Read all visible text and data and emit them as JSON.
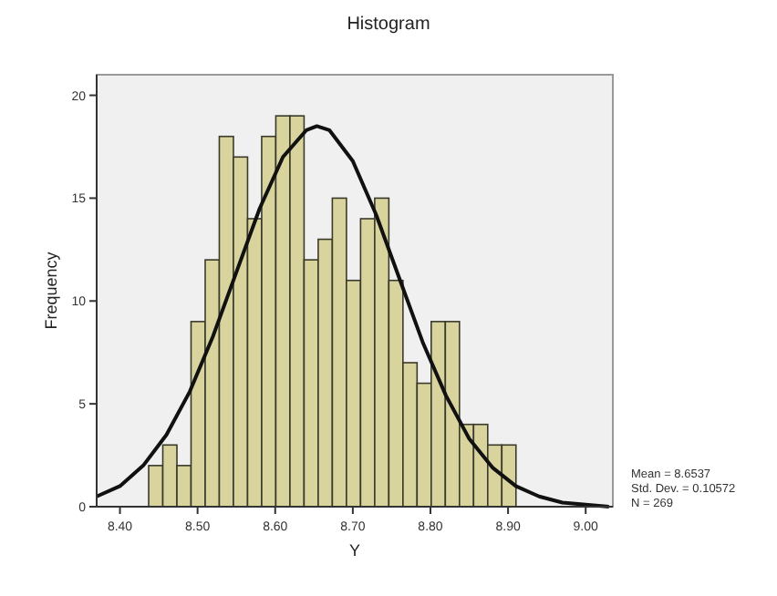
{
  "chart_data": {
    "type": "histogram",
    "title": "Histogram",
    "xlabel": "Y",
    "ylabel": "Frequency",
    "xlim": [
      8.37,
      9.035
    ],
    "xticks": [
      {
        "value": 8.4,
        "label": "8.40"
      },
      {
        "value": 8.5,
        "label": "8.50"
      },
      {
        "value": 8.6,
        "label": "8.60"
      },
      {
        "value": 8.7,
        "label": "8.70"
      },
      {
        "value": 8.8,
        "label": "8.80"
      },
      {
        "value": 8.9,
        "label": "8.90"
      },
      {
        "value": 9.0,
        "label": "9.00"
      }
    ],
    "ylim": [
      0,
      21
    ],
    "yticks": [
      0,
      5,
      10,
      15,
      20
    ],
    "series": [
      {
        "color": "#d9d49e",
        "bins": [
          8.437,
          8.4552,
          8.4734,
          8.4916,
          8.5098,
          8.528,
          8.5462,
          8.5644,
          8.5826,
          8.6008,
          8.619,
          8.6372,
          8.6554,
          8.6736,
          8.6918,
          8.71,
          8.7282,
          8.7464,
          8.7646,
          8.7828,
          8.801,
          8.8192,
          8.8374,
          8.8556,
          8.8738,
          8.892,
          8.9102
        ],
        "values": [
          2,
          3,
          2,
          9,
          12,
          18,
          17,
          14,
          18,
          19,
          19,
          12,
          13,
          15,
          11,
          14,
          15,
          11,
          7,
          6,
          9,
          9,
          4,
          4,
          3,
          3
        ]
      },
      {
        "type": "line",
        "color": "#111111",
        "x": [
          8.37,
          8.4,
          8.43,
          8.46,
          8.49,
          8.52,
          8.55,
          8.58,
          8.61,
          8.64,
          8.6537,
          8.67,
          8.7,
          8.73,
          8.76,
          8.79,
          8.82,
          8.85,
          8.88,
          8.91,
          8.94,
          8.97,
          9.0,
          9.03
        ],
        "values": [
          0.5,
          1.0,
          2.0,
          3.5,
          5.6,
          8.3,
          11.4,
          14.5,
          17.0,
          18.3,
          18.5,
          18.3,
          16.8,
          14.2,
          11.1,
          8.0,
          5.4,
          3.3,
          1.9,
          1.0,
          0.5,
          0.2,
          0.1,
          0.0
        ]
      }
    ],
    "annotations": [
      "Mean = 8.6537",
      "Std. Dev. = 0.10572",
      "N = 269"
    ]
  }
}
